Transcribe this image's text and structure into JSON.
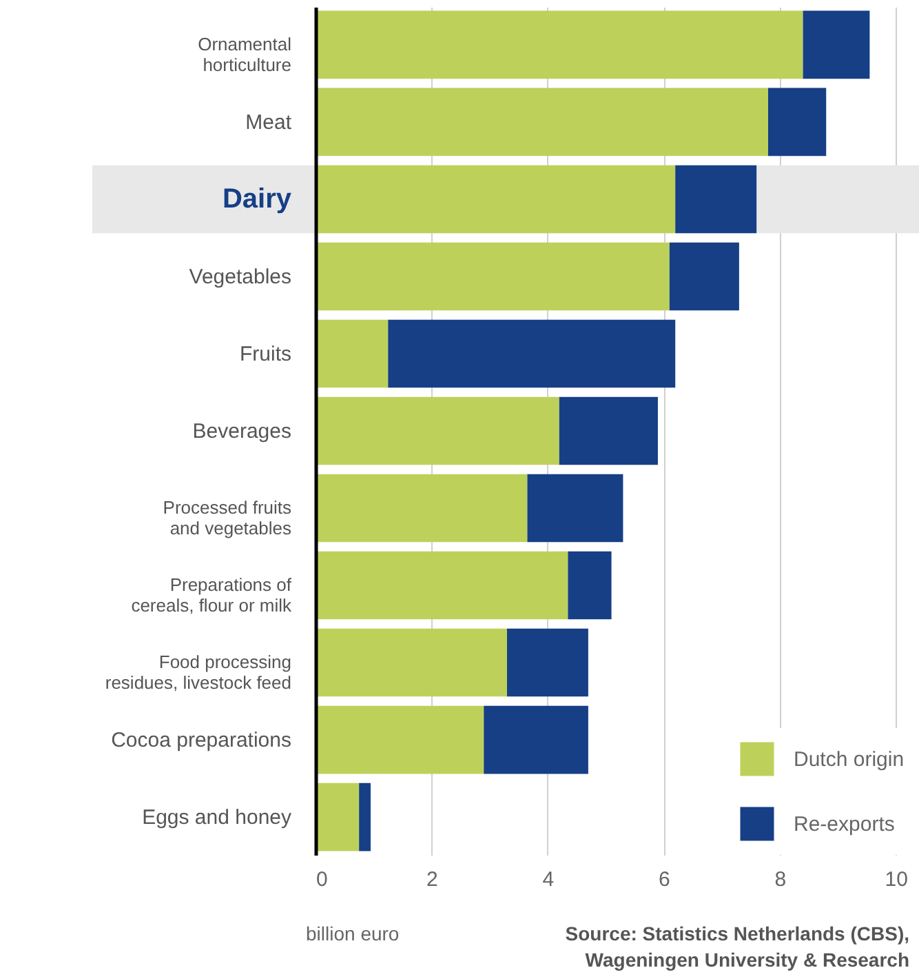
{
  "chart_data": {
    "type": "bar",
    "orientation": "horizontal",
    "stacked": true,
    "categories": [
      "Ornamental horticulture",
      "Meat",
      "Dairy",
      "Vegetables",
      "Fruits",
      "Beverages",
      "Processed fruits and vegetables",
      "Preparations of cereals, flour or milk",
      "Food processing residues, livestock feed",
      "Cocoa preparations",
      "Eggs and honey"
    ],
    "series": [
      {
        "name": "Dutch origin",
        "color": "#bdd15a",
        "values": [
          8.4,
          7.8,
          6.2,
          6.1,
          1.25,
          4.2,
          3.65,
          4.35,
          3.3,
          2.9,
          0.75
        ]
      },
      {
        "name": "Re-exports",
        "color": "#163f86",
        "values": [
          1.15,
          1.0,
          1.4,
          1.2,
          4.95,
          1.7,
          1.65,
          0.75,
          1.4,
          1.8,
          0.2
        ]
      }
    ],
    "xlim": [
      0,
      10.4
    ],
    "xticks": [
      0,
      2,
      4,
      6,
      8,
      10
    ],
    "grid": "x",
    "legend": "bottom right",
    "xlabel": "billion euro",
    "bands": [
      {
        "axis": "y",
        "from": "Dairy",
        "to": "Dairy",
        "color": "#e8e8e8"
      }
    ],
    "annotations": [
      "Source: Statistics Netherlands (CBS), Wageningen University & Research"
    ]
  }
}
